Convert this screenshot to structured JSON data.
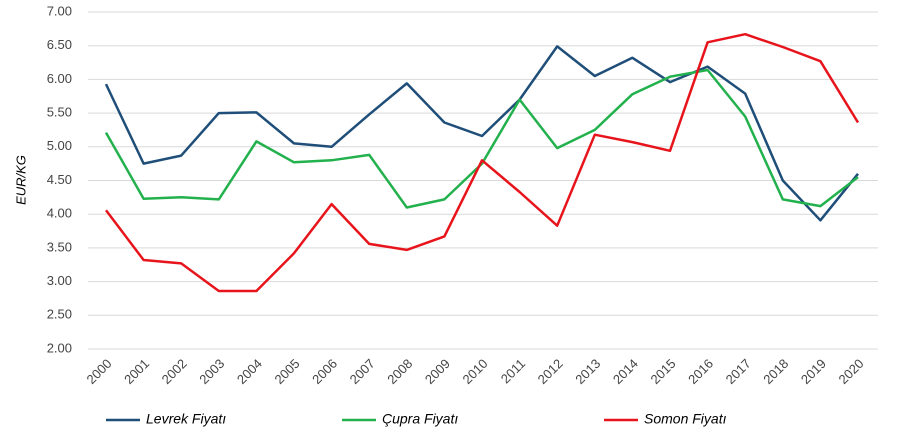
{
  "chart_data": {
    "type": "line",
    "ylabel": "EUR/KG",
    "categories": [
      "2000",
      "2001",
      "2002",
      "2003",
      "2004",
      "2005",
      "2006",
      "2007",
      "2008",
      "2009",
      "2010",
      "2011",
      "2012",
      "2013",
      "2014",
      "2015",
      "2016",
      "2017",
      "2018",
      "2019",
      "2020"
    ],
    "series": [
      {
        "name": "Levrek Fiyatı",
        "color": "#1f4e79",
        "values": [
          5.93,
          4.75,
          4.87,
          5.5,
          5.51,
          5.05,
          5.0,
          5.48,
          5.94,
          5.36,
          5.16,
          5.7,
          6.49,
          6.05,
          6.32,
          5.96,
          6.19,
          5.79,
          4.5,
          3.91,
          4.6
        ]
      },
      {
        "name": "Çupra Fiyatı",
        "color": "#22b14c",
        "values": [
          5.21,
          4.23,
          4.25,
          4.22,
          5.08,
          4.77,
          4.8,
          4.88,
          4.1,
          4.22,
          4.75,
          5.7,
          4.98,
          5.25,
          5.78,
          6.04,
          6.14,
          5.45,
          4.22,
          4.12,
          4.55
        ]
      },
      {
        "name": "Somon Fiyatı",
        "color": "#e8141c",
        "values": [
          4.06,
          3.32,
          3.27,
          2.86,
          2.86,
          3.42,
          4.15,
          3.56,
          3.47,
          3.67,
          4.8,
          4.33,
          3.83,
          5.18,
          5.07,
          4.94,
          6.55,
          6.67,
          6.48,
          6.27,
          5.36
        ]
      }
    ],
    "ylim": [
      2,
      7
    ],
    "yticks": [
      {
        "value": 2,
        "label": "2.00"
      },
      {
        "value": 2.5,
        "label": "2.50"
      },
      {
        "value": 3,
        "label": "3.00"
      },
      {
        "value": 3.5,
        "label": "3.50"
      },
      {
        "value": 4,
        "label": "4.00"
      },
      {
        "value": 4.5,
        "label": "4.50"
      },
      {
        "value": 5,
        "label": "5.00"
      },
      {
        "value": 5.5,
        "label": "5.50"
      },
      {
        "value": 6,
        "label": "6.00"
      },
      {
        "value": 6.5,
        "label": "6.50"
      },
      {
        "value": 7,
        "label": "7.00"
      }
    ],
    "grid": true,
    "legend": "bottom"
  }
}
